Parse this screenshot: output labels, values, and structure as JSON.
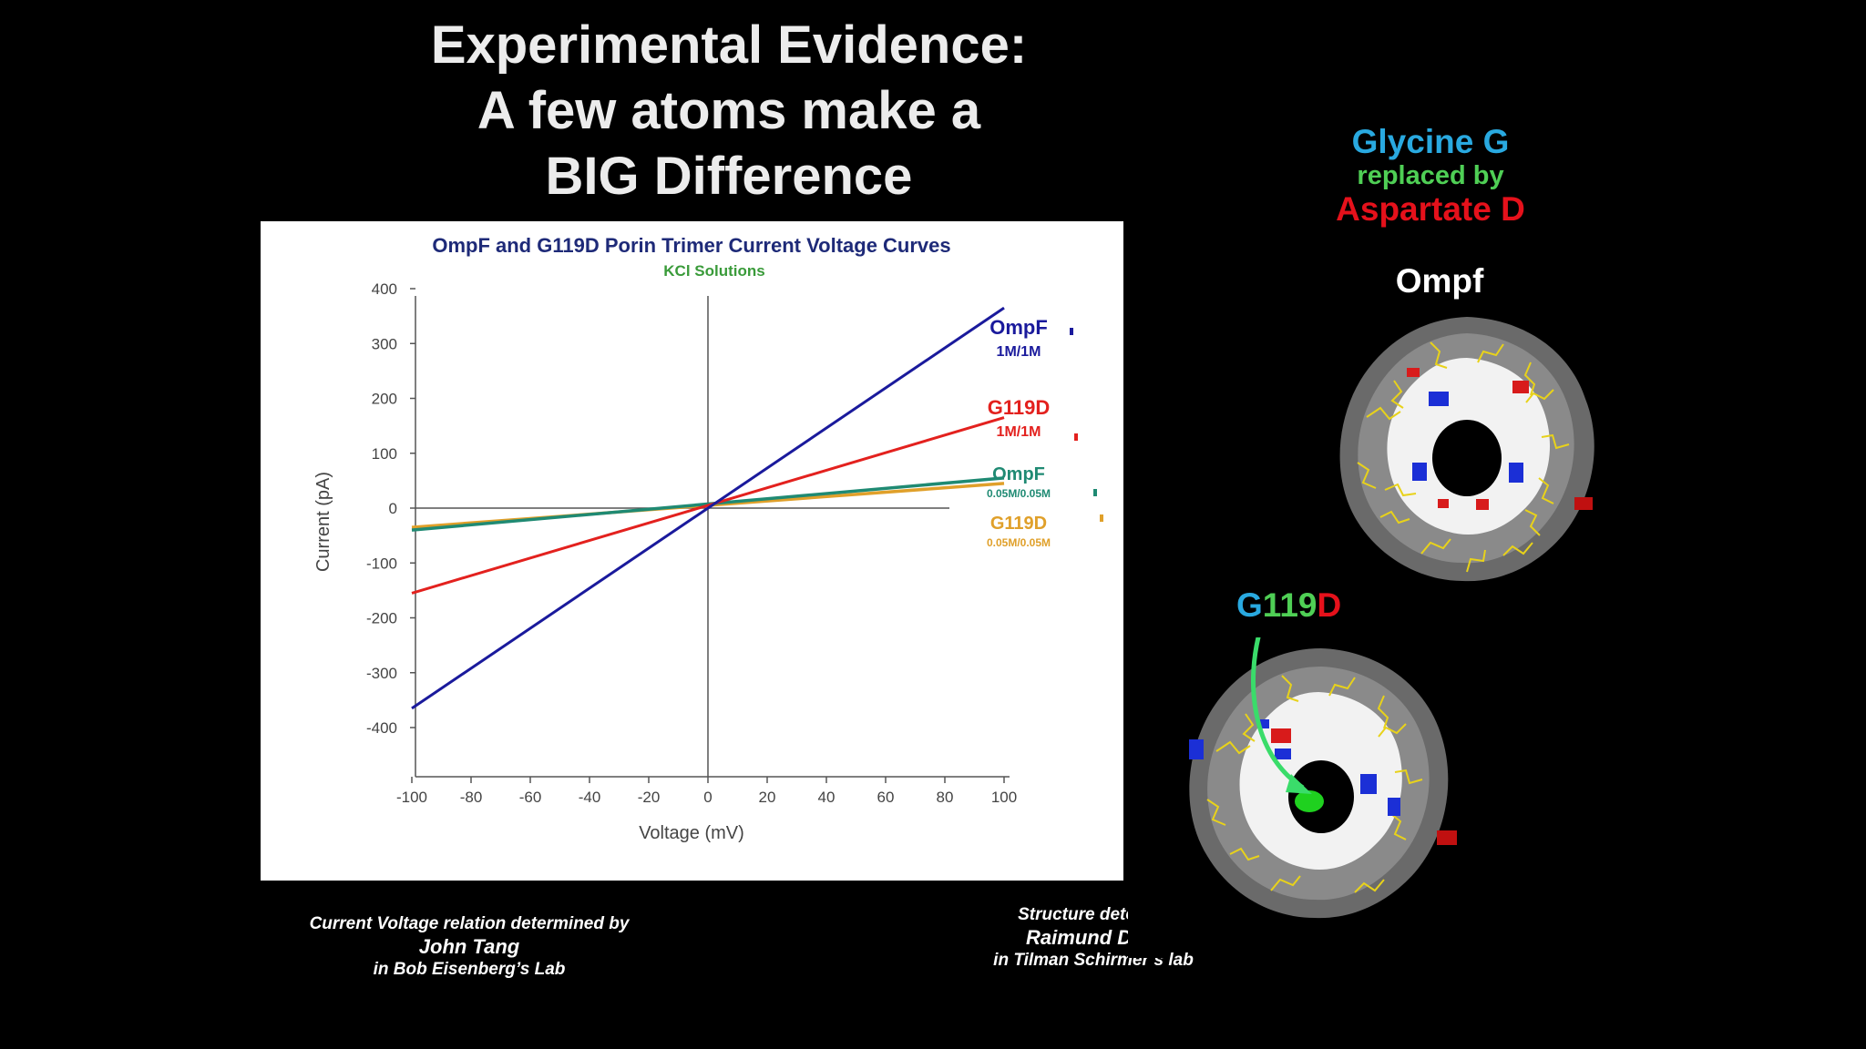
{
  "slide": {
    "title_lines": [
      "Experimental Evidence:",
      "A few atoms make a",
      "BIG Difference"
    ]
  },
  "mutation_legend": {
    "line1": "Glycine G",
    "line2": "replaced by",
    "line3": "Aspartate D"
  },
  "structures": {
    "ompf_label": "Ompf",
    "g119d_label_parts": [
      "G",
      "119",
      "D"
    ],
    "icon": "porin-trimer-structure-icon",
    "arrow_icon": "green-arrow-icon"
  },
  "credits": {
    "left_line1": "Current Voltage relation determined by",
    "left_name": "John Tang",
    "left_line3": "in Bob Eisenberg’s Lab",
    "right_line1": "Structure determir",
    "right_name": "Raimund Dutz",
    "right_line3": "in Tilman Schirmer’s lab"
  },
  "colors": {
    "ompf_1m": "#1a1a9c",
    "g119d_1m": "#e3211e",
    "ompf_005m": "#1f8a73",
    "g119d_005m": "#e0a02a",
    "title_blue": "#1e2a78",
    "subtitle_green": "#3a9b3a"
  },
  "chart_data": {
    "type": "line",
    "title": "OmpF and G119D Porin Trimer Current Voltage Curves",
    "subtitle": "KCl Solutions",
    "xlabel": "Voltage (mV)",
    "ylabel": "Current (pA)",
    "xlim": [
      -100,
      100
    ],
    "ylim": [
      -400,
      400
    ],
    "x_ticks": [
      -100,
      -80,
      -60,
      -40,
      -20,
      0,
      20,
      40,
      60,
      80,
      100
    ],
    "y_ticks": [
      400,
      300,
      200,
      100,
      0,
      -100,
      -200,
      -300,
      -400
    ],
    "grid": false,
    "legend_placement": "right",
    "series": [
      {
        "name": "OmpF",
        "conc": "1M/1M",
        "color": "#1a1a9c",
        "x": [
          -100,
          100
        ],
        "y": [
          -365,
          365
        ]
      },
      {
        "name": "G119D",
        "conc": "1M/1M",
        "color": "#e3211e",
        "x": [
          -100,
          100
        ],
        "y": [
          -155,
          165
        ]
      },
      {
        "name": "OmpF",
        "conc": "0.05M/0.05M",
        "color": "#1f8a73",
        "x": [
          -100,
          100
        ],
        "y": [
          -40,
          55
        ]
      },
      {
        "name": "G119D",
        "conc": "0.05M/0.05M",
        "color": "#e0a02a",
        "x": [
          -100,
          100
        ],
        "y": [
          -35,
          45
        ]
      }
    ]
  }
}
